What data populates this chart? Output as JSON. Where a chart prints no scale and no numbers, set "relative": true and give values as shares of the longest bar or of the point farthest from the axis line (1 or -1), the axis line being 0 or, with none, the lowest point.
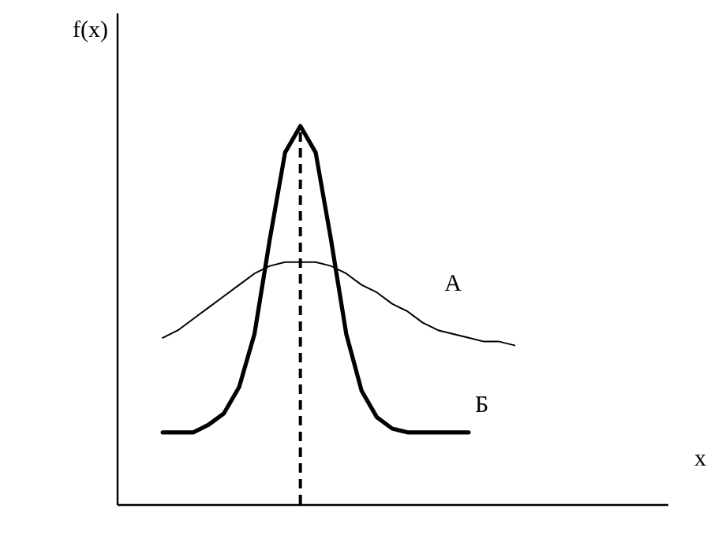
{
  "chart_data": {
    "type": "line",
    "relative": true,
    "xlabel": "x",
    "ylabel": "f(x)",
    "marker": "none",
    "line_style": "solid",
    "categories": [
      null,
      null,
      null,
      null,
      null,
      null,
      null,
      null,
      null,
      null,
      null,
      null,
      null,
      null,
      null,
      null,
      null,
      null,
      null,
      null,
      null,
      null,
      null,
      null,
      null,
      null,
      null,
      null,
      null,
      null,
      null,
      null,
      null,
      null,
      null,
      null,
      null
    ],
    "series": [
      {
        "name": "А",
        "color": "#000000",
        "values": [
          null,
          null,
          null,
          0.44,
          0.46,
          0.49,
          0.52,
          0.55,
          0.58,
          0.61,
          0.63,
          0.64,
          0.64,
          0.64,
          0.63,
          0.61,
          0.58,
          0.56,
          0.53,
          0.51,
          0.48,
          0.46,
          0.45,
          0.44,
          0.43,
          0.43,
          0.42,
          null,
          null,
          null,
          null,
          null,
          null,
          null,
          null,
          null,
          null
        ]
      },
      {
        "name": "Б",
        "color": "#000000",
        "values": [
          null,
          null,
          null,
          0.19,
          0.19,
          0.19,
          0.21,
          0.24,
          0.31,
          0.45,
          0.7,
          0.93,
          1.0,
          0.93,
          0.7,
          0.45,
          0.3,
          0.23,
          0.2,
          0.19,
          0.19,
          0.19,
          0.19,
          0.19,
          null,
          null,
          null,
          null,
          null,
          null,
          null,
          null,
          null,
          null,
          null,
          null,
          null
        ]
      }
    ]
  }
}
